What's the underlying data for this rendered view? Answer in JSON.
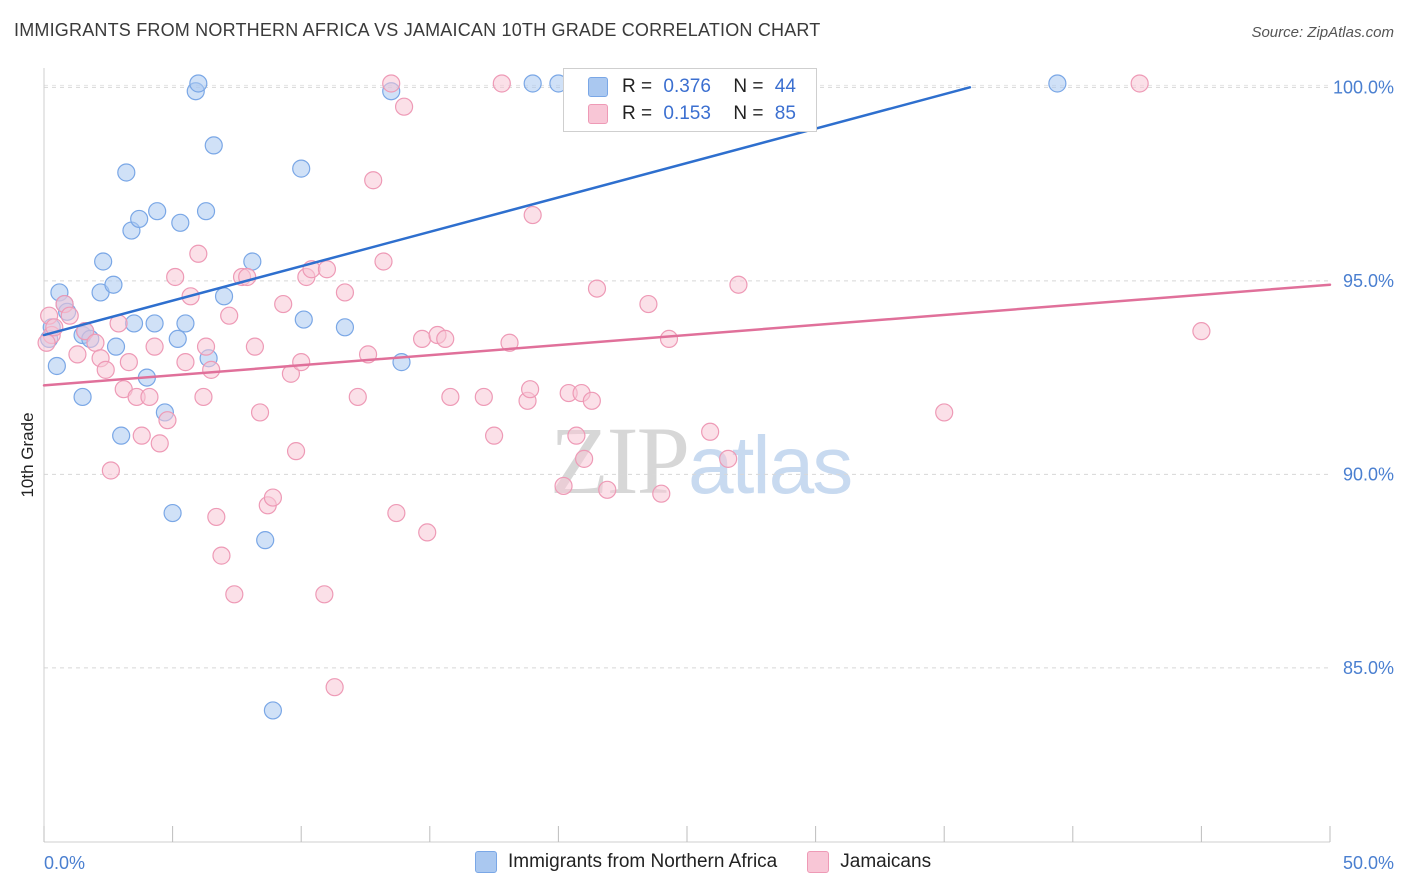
{
  "header": {
    "title": "IMMIGRANTS FROM NORTHERN AFRICA VS JAMAICAN 10TH GRADE CORRELATION CHART",
    "source": "Source: ZipAtlas.com"
  },
  "watermark": {
    "zip": "ZIP",
    "atlas": "atlas"
  },
  "legend": {
    "rows": [
      {
        "r_label": "R =",
        "r_value": "0.376",
        "n_label": "N =",
        "n_value": "44",
        "color": "#aac8f0",
        "border": "#7aa7e6"
      },
      {
        "r_label": "R =",
        "r_value": "0.153",
        "n_label": "N =",
        "n_value": "85",
        "color": "#f8c6d6",
        "border": "#ee9ab6"
      }
    ]
  },
  "bottom_legend": [
    {
      "label": "Immigrants from Northern Africa",
      "color": "#aac8f0",
      "border": "#7aa7e6"
    },
    {
      "label": "Jamaicans",
      "color": "#f8c6d6",
      "border": "#ee9ab6"
    }
  ],
  "chart_data": {
    "type": "scatter",
    "title": "IMMIGRANTS FROM NORTHERN AFRICA VS JAMAICAN 10TH GRADE CORRELATION CHART",
    "xlabel": "",
    "ylabel": "10th Grade",
    "xlim": [
      0,
      50
    ],
    "ylim": [
      80.5,
      100.5
    ],
    "x_tick_labels": [
      "0.0%",
      "50.0%"
    ],
    "y_ticks": [
      85,
      90,
      95,
      100
    ],
    "y_tick_labels": [
      "85.0%",
      "90.0%",
      "95.0%",
      "100.0%"
    ],
    "grid": true,
    "legend_position": "top-center",
    "series": [
      {
        "name": "Immigrants from Northern Africa",
        "color": "#7aa7e6",
        "fill": "#aac8f0",
        "trend_color": "#2e6fce",
        "trend": {
          "x": [
            0,
            36
          ],
          "y": [
            93.6,
            100.0
          ]
        },
        "points": [
          [
            0.2,
            93.5
          ],
          [
            0.3,
            93.8
          ],
          [
            0.5,
            92.8
          ],
          [
            0.6,
            94.7
          ],
          [
            0.8,
            94.4
          ],
          [
            0.9,
            94.2
          ],
          [
            1.5,
            93.6
          ],
          [
            1.6,
            93.7
          ],
          [
            1.8,
            93.5
          ],
          [
            1.5,
            92.0
          ],
          [
            2.2,
            94.7
          ],
          [
            2.3,
            95.5
          ],
          [
            2.7,
            94.9
          ],
          [
            2.8,
            93.3
          ],
          [
            3.0,
            91.0
          ],
          [
            3.2,
            97.8
          ],
          [
            3.4,
            96.3
          ],
          [
            3.5,
            93.9
          ],
          [
            3.7,
            96.6
          ],
          [
            4.0,
            92.5
          ],
          [
            4.3,
            93.9
          ],
          [
            4.4,
            96.8
          ],
          [
            4.7,
            91.6
          ],
          [
            5.0,
            89.0
          ],
          [
            5.2,
            93.5
          ],
          [
            5.3,
            96.5
          ],
          [
            5.5,
            93.9
          ],
          [
            5.9,
            99.9
          ],
          [
            6.0,
            100.1
          ],
          [
            6.3,
            96.8
          ],
          [
            6.4,
            93.0
          ],
          [
            6.6,
            98.5
          ],
          [
            7.0,
            94.6
          ],
          [
            8.1,
            95.5
          ],
          [
            8.6,
            88.3
          ],
          [
            8.9,
            83.9
          ],
          [
            10.0,
            97.9
          ],
          [
            10.1,
            94.0
          ],
          [
            11.7,
            93.8
          ],
          [
            13.5,
            99.9
          ],
          [
            13.9,
            92.9
          ],
          [
            19.0,
            100.1
          ],
          [
            20.0,
            100.1
          ],
          [
            39.4,
            100.1
          ]
        ]
      },
      {
        "name": "Jamaicans",
        "color": "#ee9ab6",
        "fill": "#f8c6d6",
        "trend_color": "#e0709a",
        "trend": {
          "x": [
            0,
            50
          ],
          "y": [
            92.3,
            94.9
          ]
        },
        "points": [
          [
            0.2,
            94.1
          ],
          [
            0.3,
            93.6
          ],
          [
            0.8,
            94.4
          ],
          [
            1.0,
            94.1
          ],
          [
            1.3,
            93.1
          ],
          [
            1.6,
            93.7
          ],
          [
            2.0,
            93.4
          ],
          [
            2.2,
            93.0
          ],
          [
            2.4,
            92.7
          ],
          [
            2.6,
            90.1
          ],
          [
            2.9,
            93.9
          ],
          [
            3.1,
            92.2
          ],
          [
            3.3,
            92.9
          ],
          [
            3.6,
            92.0
          ],
          [
            3.8,
            91.0
          ],
          [
            4.1,
            92.0
          ],
          [
            4.3,
            93.3
          ],
          [
            4.5,
            90.8
          ],
          [
            4.8,
            91.4
          ],
          [
            5.1,
            95.1
          ],
          [
            5.5,
            92.9
          ],
          [
            5.7,
            94.6
          ],
          [
            6.0,
            95.7
          ],
          [
            6.2,
            92.0
          ],
          [
            6.3,
            93.3
          ],
          [
            6.5,
            92.7
          ],
          [
            6.7,
            88.9
          ],
          [
            6.9,
            87.9
          ],
          [
            7.2,
            94.1
          ],
          [
            7.4,
            86.9
          ],
          [
            7.7,
            95.1
          ],
          [
            7.9,
            95.1
          ],
          [
            8.2,
            93.3
          ],
          [
            8.4,
            91.6
          ],
          [
            8.7,
            89.2
          ],
          [
            8.9,
            89.4
          ],
          [
            9.3,
            94.4
          ],
          [
            9.6,
            92.6
          ],
          [
            9.8,
            90.6
          ],
          [
            10.0,
            92.9
          ],
          [
            10.2,
            95.1
          ],
          [
            10.4,
            95.3
          ],
          [
            10.9,
            86.9
          ],
          [
            11.0,
            95.3
          ],
          [
            11.3,
            84.5
          ],
          [
            11.7,
            94.7
          ],
          [
            12.2,
            92.0
          ],
          [
            12.6,
            93.1
          ],
          [
            12.8,
            97.6
          ],
          [
            13.2,
            95.5
          ],
          [
            13.5,
            100.1
          ],
          [
            13.7,
            89.0
          ],
          [
            14.0,
            99.5
          ],
          [
            14.7,
            93.5
          ],
          [
            14.9,
            88.5
          ],
          [
            15.3,
            93.6
          ],
          [
            15.6,
            93.5
          ],
          [
            15.8,
            92.0
          ],
          [
            17.1,
            92.0
          ],
          [
            17.5,
            91.0
          ],
          [
            17.8,
            100.1
          ],
          [
            18.1,
            93.4
          ],
          [
            18.8,
            91.9
          ],
          [
            18.9,
            92.2
          ],
          [
            19.0,
            96.7
          ],
          [
            20.2,
            89.7
          ],
          [
            20.4,
            92.1
          ],
          [
            20.7,
            91.0
          ],
          [
            20.9,
            92.1
          ],
          [
            21.0,
            90.4
          ],
          [
            21.3,
            91.9
          ],
          [
            21.5,
            94.8
          ],
          [
            21.9,
            89.6
          ],
          [
            23.5,
            94.4
          ],
          [
            24.0,
            89.5
          ],
          [
            24.3,
            93.5
          ],
          [
            25.5,
            100.1
          ],
          [
            25.9,
            91.1
          ],
          [
            26.6,
            90.4
          ],
          [
            27.0,
            94.9
          ],
          [
            35.0,
            91.6
          ],
          [
            42.6,
            100.1
          ],
          [
            45.0,
            93.7
          ],
          [
            0.1,
            93.4
          ],
          [
            0.4,
            93.8
          ]
        ]
      }
    ]
  }
}
